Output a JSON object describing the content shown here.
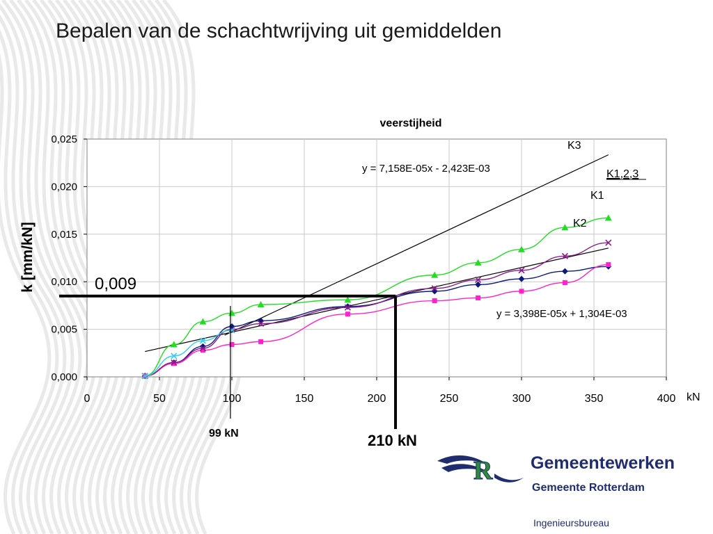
{
  "slide": {
    "title": "Bepalen van de schachtwrijving uit gemiddelden",
    "org_name": "Gemeentewerken",
    "org_sub": "Gemeente Rotterdam",
    "org_dept": "Ingenieursbureau",
    "logo_letter": "R"
  },
  "colors": {
    "k3": "#22dd22",
    "k1": "#0a1a7a",
    "k2": "#ff22cc",
    "k123": "#8a1a8a",
    "cyan": "#33ccee",
    "trend": "#000000",
    "logo_blue": "#1f2d6e",
    "logo_green": "#2e8b3a"
  },
  "chart_data": {
    "type": "line",
    "title": "veerstijheid",
    "xlabel": "kN",
    "ylabel": "k  [mm/kN]",
    "xlim": [
      0,
      400
    ],
    "ylim": [
      0,
      0.025
    ],
    "x_ticks": [
      0,
      50,
      100,
      150,
      200,
      250,
      300,
      350,
      400
    ],
    "x_tick_labels": [
      "0",
      "50",
      "100",
      "150",
      "200",
      "250",
      "300",
      "350",
      "400"
    ],
    "y_ticks": [
      0,
      0.005,
      0.01,
      0.015,
      0.02,
      0.025
    ],
    "y_tick_labels": [
      "0,000",
      "0,005",
      "0,010",
      "0,015",
      "0,020",
      "0,025"
    ],
    "grid": true,
    "series": [
      {
        "name": "K3",
        "color_key": "k3",
        "marker": "triangle",
        "x": [
          40,
          60,
          80,
          100,
          120,
          180,
          240,
          270,
          300,
          330,
          360
        ],
        "y": [
          0.0001,
          0.0034,
          0.0058,
          0.0067,
          0.0076,
          0.0081,
          0.0107,
          0.012,
          0.0134,
          0.0157,
          0.0167
        ]
      },
      {
        "name": "K1",
        "color_key": "k1",
        "marker": "diamond",
        "x": [
          40,
          60,
          80,
          100,
          120,
          180,
          240,
          270,
          300,
          330,
          360
        ],
        "y": [
          0.0001,
          0.0015,
          0.0032,
          0.0053,
          0.0059,
          0.0074,
          0.009,
          0.0097,
          0.0103,
          0.0111,
          0.0116
        ]
      },
      {
        "name": "K2",
        "color_key": "k2",
        "marker": "square",
        "x": [
          40,
          60,
          80,
          100,
          120,
          180,
          240,
          270,
          300,
          330,
          360
        ],
        "y": [
          0.0001,
          0.0014,
          0.0028,
          0.0034,
          0.0037,
          0.0066,
          0.008,
          0.0083,
          0.009,
          0.0099,
          0.0118
        ]
      },
      {
        "name": "K1,2,3",
        "color_key": "k123",
        "marker": "x",
        "x": [
          40,
          60,
          80,
          100,
          120,
          180,
          240,
          270,
          300,
          330,
          360
        ],
        "y": [
          0.0001,
          0.0015,
          0.003,
          0.005,
          0.0056,
          0.0073,
          0.0093,
          0.0102,
          0.0112,
          0.0127,
          0.0141
        ]
      },
      {
        "name": "",
        "color_key": "cyan",
        "marker": "x",
        "x": [
          40,
          60,
          80,
          100
        ],
        "y": [
          0.0001,
          0.0022,
          0.0038,
          0.0049
        ]
      }
    ],
    "trendlines": [
      {
        "equation": "y = 7,158E-05x - 2,423E-03",
        "slope": 7.158e-05,
        "intercept": -0.002423,
        "x": [
          95,
          360
        ]
      },
      {
        "equation": "y = 3,398E-05x + 1,304E-03",
        "slope": 3.398e-05,
        "intercept": 0.001304,
        "x": [
          40,
          360
        ]
      }
    ],
    "annotations": {
      "k3_label": "K3",
      "k123_label": "K1,2,3",
      "k1_label": "K1",
      "k2_label": "K2",
      "value_label": "0,009",
      "value_y": 0.0085,
      "marker_99_label": "99 kN",
      "marker_99_x": 99,
      "marker_210_label": "210 kN",
      "marker_210_x": 213
    }
  }
}
